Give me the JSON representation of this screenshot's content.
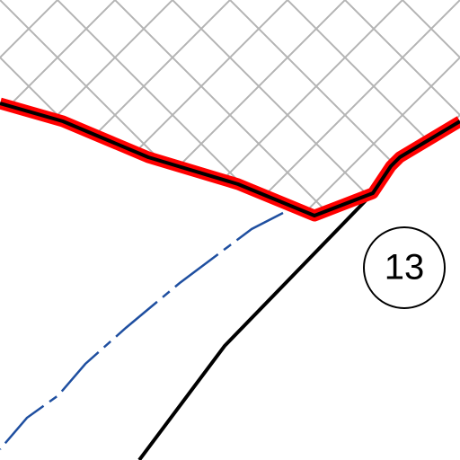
{
  "map": {
    "label": "13"
  }
}
